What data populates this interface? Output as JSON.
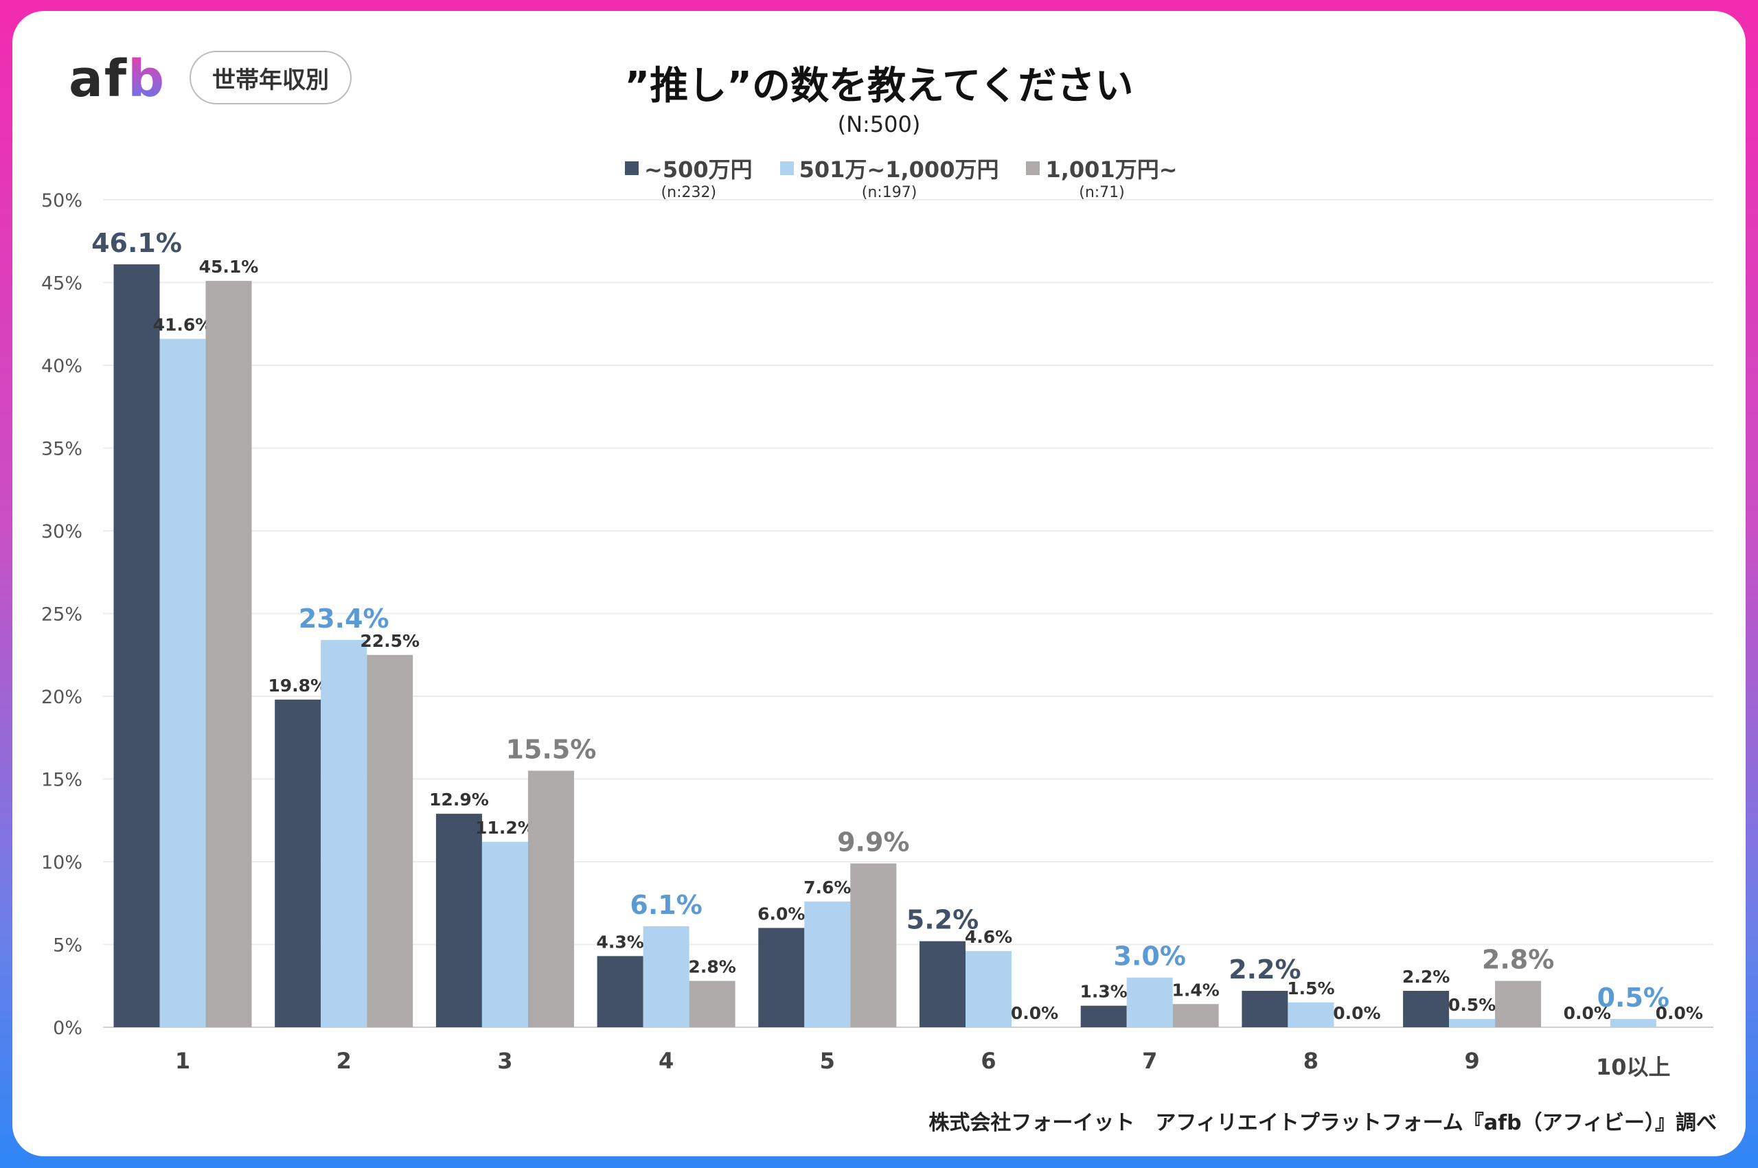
{
  "header": {
    "logo": "afb",
    "filter_label": "世帯年収別",
    "title": "”推し”の数を教えてください",
    "sample": "(N:500)"
  },
  "source": "株式会社フォーイット　アフィリエイトプラットフォーム『afb（アフィビー）』調べ",
  "chart_data": {
    "type": "bar",
    "title": "”推し”の数を教えてください",
    "subtitle": "(N:500)",
    "categories": [
      "1",
      "2",
      "3",
      "4",
      "5",
      "6",
      "7",
      "8",
      "9",
      "10以上"
    ],
    "ylim": [
      0,
      50
    ],
    "yticks": [
      "0%",
      "5%",
      "10%",
      "15%",
      "20%",
      "25%",
      "30%",
      "35%",
      "40%",
      "45%",
      "50%"
    ],
    "grid": true,
    "legend_position": "top",
    "series": [
      {
        "name": "~500万円",
        "n": "(n:232)",
        "color": "#435168",
        "values": [
          46.1,
          19.8,
          12.9,
          4.3,
          6.0,
          5.2,
          1.3,
          2.2,
          2.2,
          0.0
        ]
      },
      {
        "name": "501万~1,000万円",
        "n": "(n:197)",
        "color": "#aed2ef",
        "values": [
          41.6,
          23.4,
          11.2,
          6.1,
          7.6,
          4.6,
          3.0,
          1.5,
          0.5,
          0.5
        ]
      },
      {
        "name": "1,001万円~",
        "n": "(n:71)",
        "color": "#aeaaaa",
        "values": [
          45.1,
          22.5,
          15.5,
          2.8,
          9.9,
          0.0,
          1.4,
          0.0,
          2.8,
          0.0
        ]
      }
    ],
    "highlight_colors": [
      "#435168",
      "#5b9bd5",
      "#7f7f7f"
    ]
  }
}
